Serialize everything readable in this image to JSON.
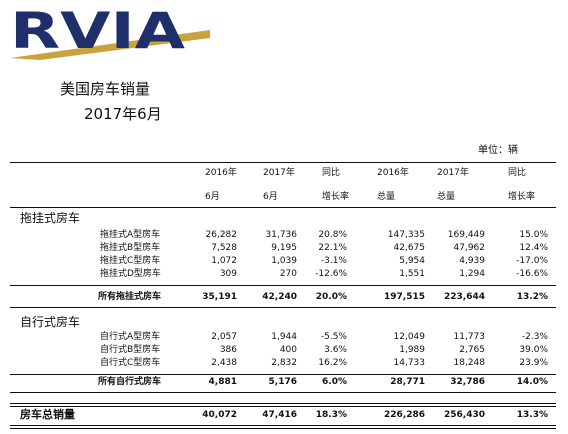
{
  "header": {
    "logo": "RVIA",
    "title": "美国房车销量",
    "subtitle": "2017年6月",
    "unit": "单位：辆"
  },
  "table": {
    "columns": [
      [
        "2016年",
        "6月"
      ],
      [
        "2017年",
        "6月"
      ],
      [
        "同比",
        "增长率"
      ],
      [
        "2016年",
        "总量"
      ],
      [
        "2017年",
        "总量"
      ],
      [
        "同比",
        "增长率"
      ]
    ],
    "sections": [
      {
        "name": "拖挂式房车",
        "rows": [
          [
            "拖挂式A型房车",
            "26,282",
            "31,736",
            "20.8%",
            "147,335",
            "169,449",
            "15.0%"
          ],
          [
            "拖挂式B型房车",
            "7,528",
            "9,195",
            "22.1%",
            "42,675",
            "47,962",
            "12.4%"
          ],
          [
            "拖挂式C型房车",
            "1,072",
            "1,039",
            "-3.1%",
            "5,954",
            "4,939",
            "-17.0%"
          ],
          [
            "拖挂式D型房车",
            "309",
            "270",
            "-12.6%",
            "1,551",
            "1,294",
            "-16.6%"
          ]
        ],
        "total": [
          "所有拖挂式房车",
          "35,191",
          "42,240",
          "20.0%",
          "197,515",
          "223,644",
          "13.2%"
        ]
      },
      {
        "name": "自行式房车",
        "rows": [
          [
            "自行式A型房车",
            "2,057",
            "1,944",
            "-5.5%",
            "12,049",
            "11,773",
            "-2.3%"
          ],
          [
            "自行式B型房车",
            "386",
            "400",
            "3.6%",
            "1,989",
            "2,765",
            "39.0%"
          ],
          [
            "自行式C型房车",
            "2,438",
            "2,832",
            "16.2%",
            "14,733",
            "18,248",
            "23.9%"
          ]
        ],
        "total": [
          "所有自行式房车",
          "4,881",
          "5,176",
          "6.0%",
          "28,771",
          "32,786",
          "14.0%"
        ]
      }
    ],
    "grand_total": [
      "房车总销量",
      "40,072",
      "47,416",
      "18.3%",
      "226,286",
      "256,430",
      "13.3%"
    ]
  }
}
